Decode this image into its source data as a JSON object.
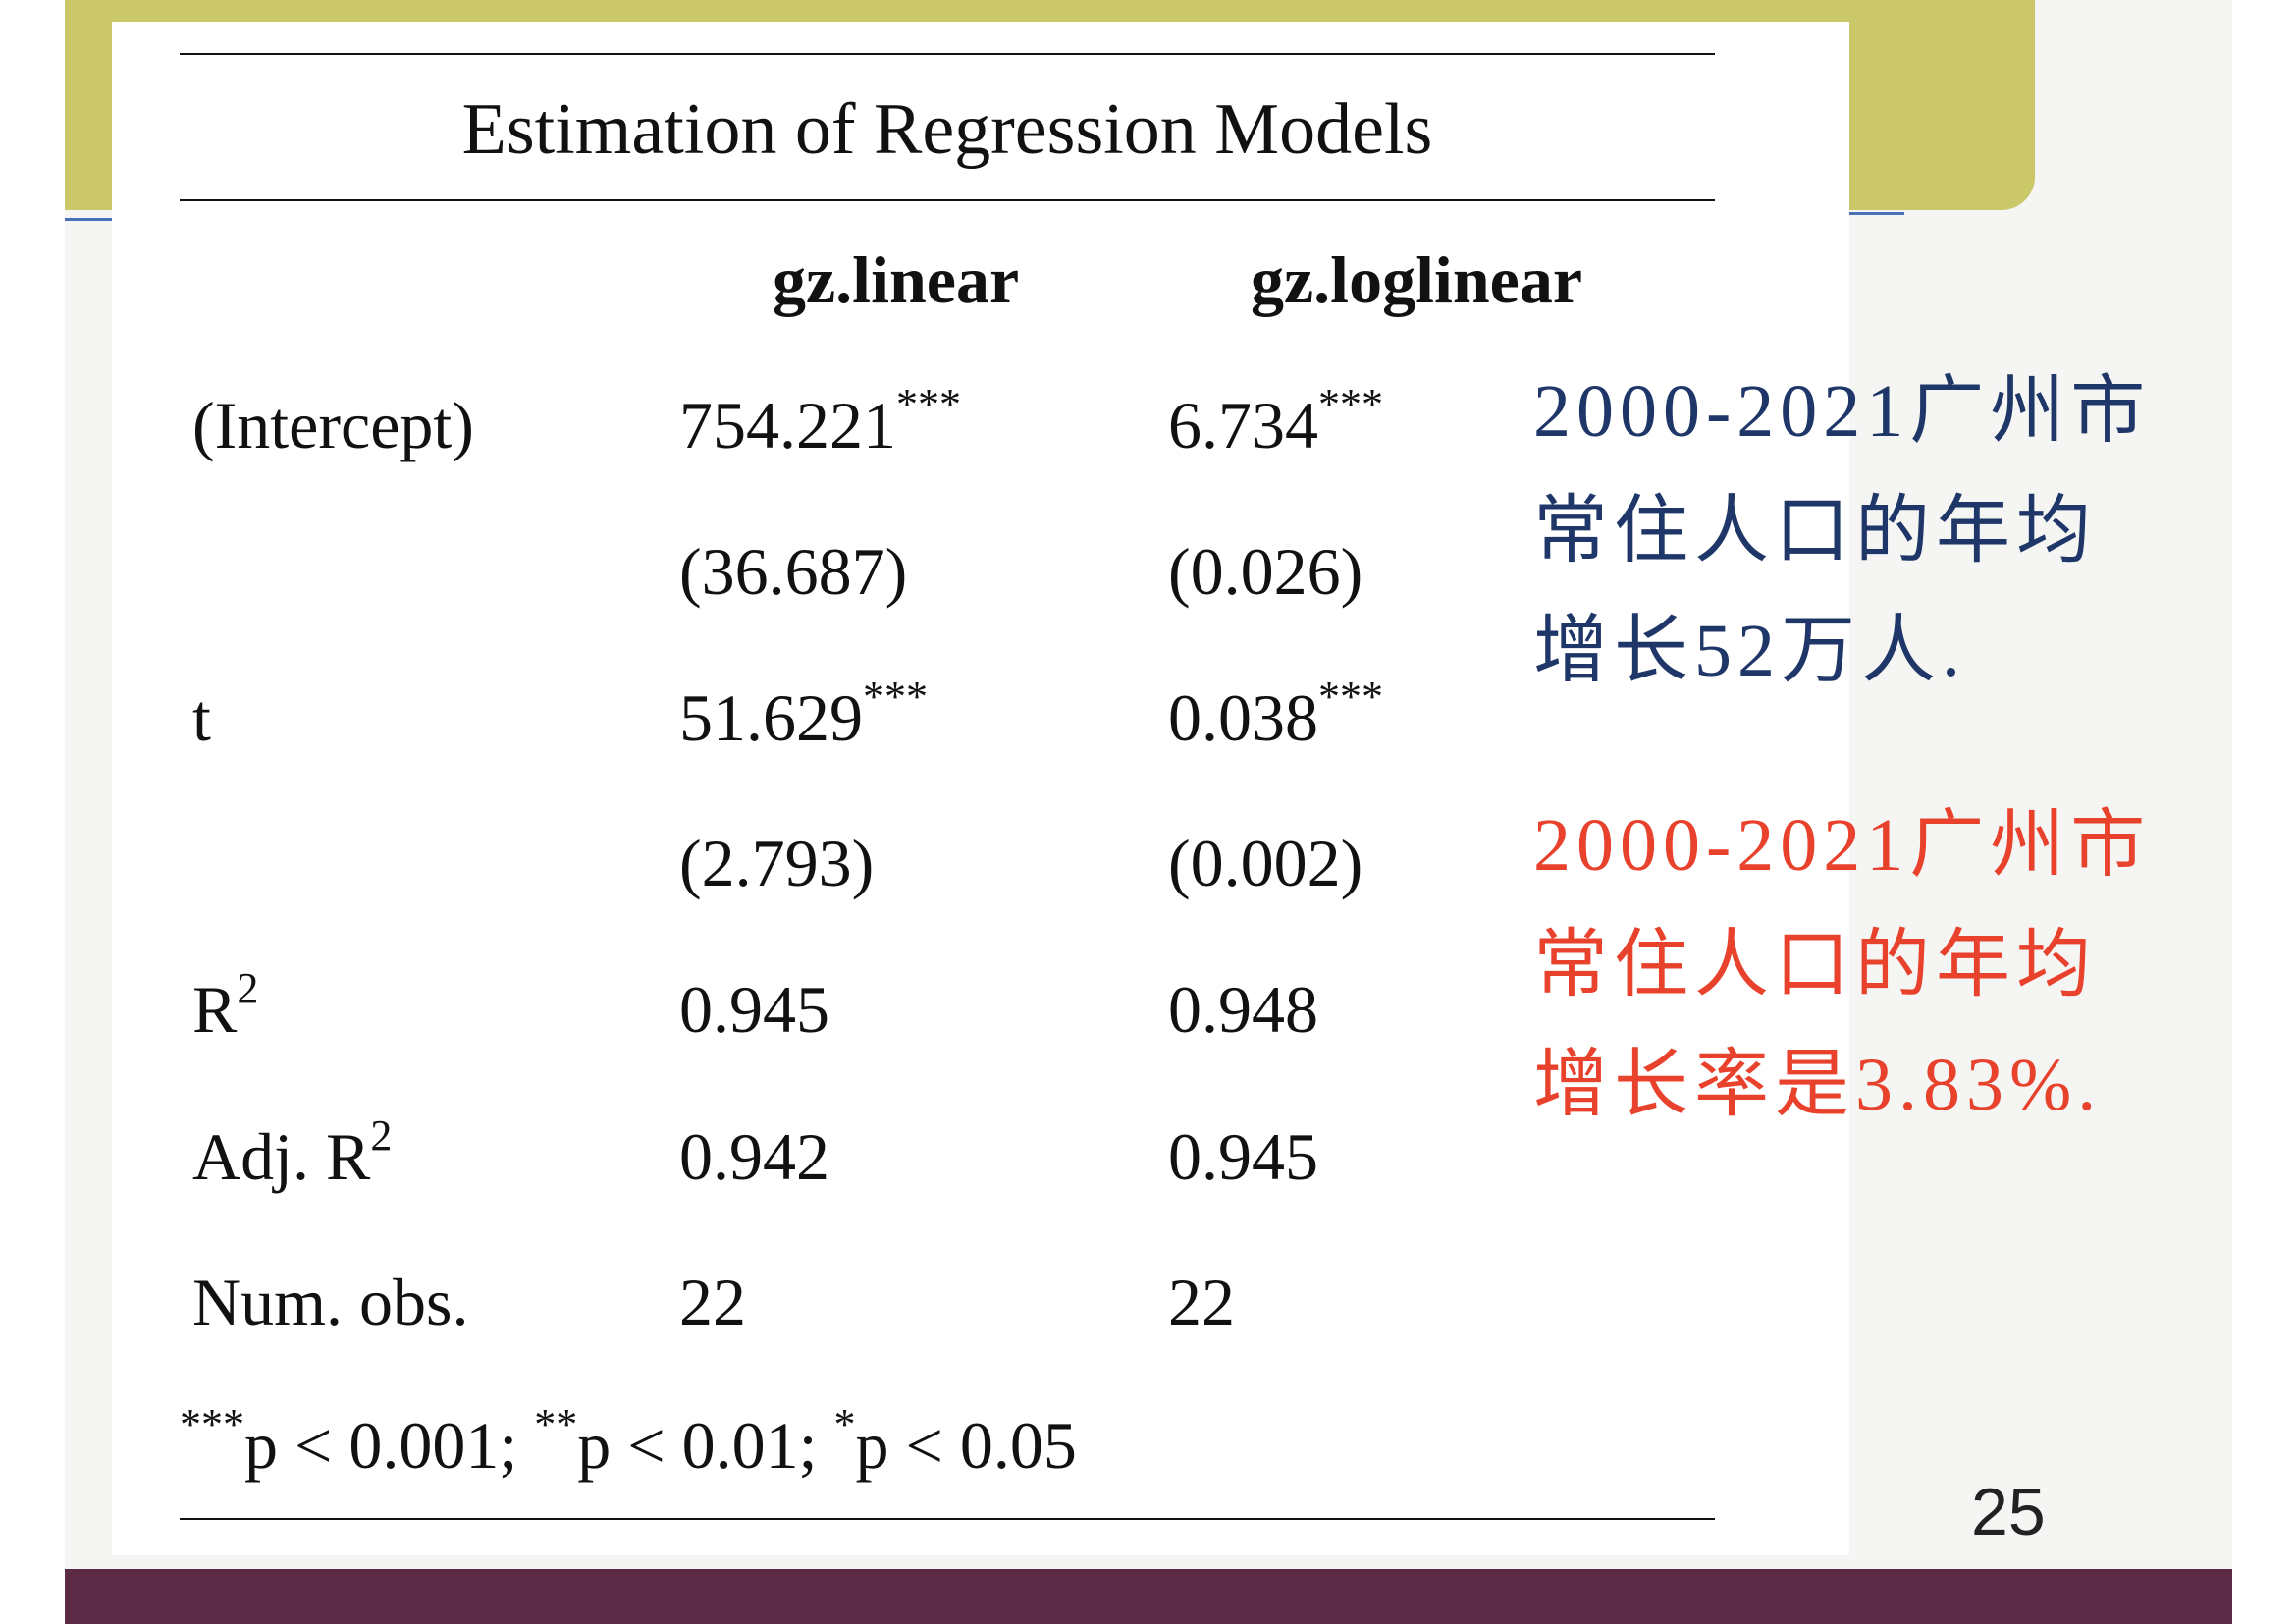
{
  "title": "Estimation of Regression Models",
  "columns": [
    "gz.linear",
    "gz.loglinear"
  ],
  "rows": [
    {
      "label": "(Intercept)",
      "linear": "754.221",
      "linear_sig": "***",
      "loglinear": "6.734",
      "loglinear_sig": "***"
    },
    {
      "label": "",
      "linear": "(36.687)",
      "loglinear": "(0.026)"
    },
    {
      "label": "t",
      "linear": "51.629",
      "linear_sig": "***",
      "loglinear": "0.038",
      "loglinear_sig": "***"
    },
    {
      "label": "",
      "linear": "(2.793)",
      "loglinear": "(0.002)"
    },
    {
      "label": "R",
      "label_sup": "2",
      "linear": "0.945",
      "loglinear": "0.948"
    },
    {
      "label": "Adj. R",
      "label_sup": "2",
      "linear": "0.942",
      "loglinear": "0.945"
    },
    {
      "label": "Num. obs.",
      "linear": "22",
      "loglinear": "22"
    }
  ],
  "footnote": {
    "s1": "***",
    "t1": "p < 0.001; ",
    "s2": "**",
    "t2": "p < 0.01; ",
    "s3": "*",
    "t3": "p < 0.05"
  },
  "notes": [
    {
      "lines": [
        "2000-2021广州市",
        "常住人口的年均",
        "增长52万人."
      ],
      "color": "#1f3768"
    },
    {
      "lines": [
        "2000-2021广州市",
        "常住人口的年均",
        "增长率是3.83%."
      ],
      "color": "#e8412c"
    }
  ],
  "page_number": "25",
  "colors": {
    "olive_bar": "#cbc86a",
    "bottom_bar": "#5b2b45",
    "accent_blue": "#4a72b8"
  }
}
